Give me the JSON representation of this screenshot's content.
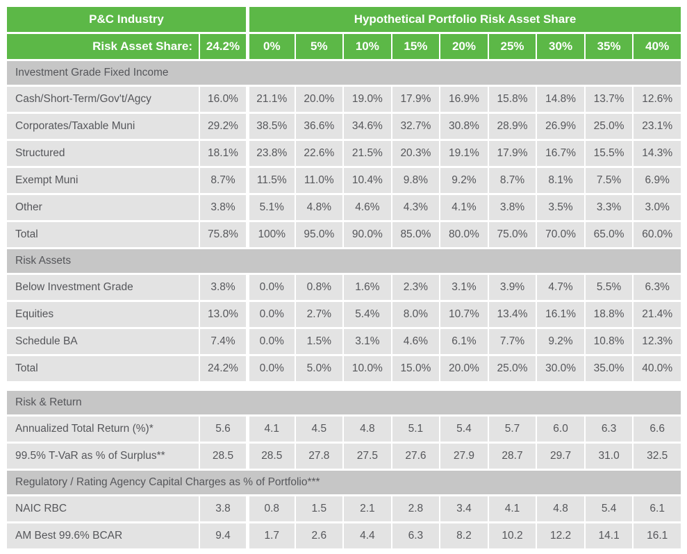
{
  "colors": {
    "green": "#5cb847",
    "header_text": "#ffffff",
    "section_bg": "#c6c6c6",
    "row_bg": "#e3e3e3",
    "text": "#55565a",
    "page_bg": "#ffffff"
  },
  "chart_data": {
    "type": "table",
    "header": {
      "left_group": "P&C Industry",
      "right_group": "Hypothetical Portfolio Risk Asset Share",
      "row_label": "Risk Asset Share:",
      "industry_value": "24.2%",
      "risk_share_columns": [
        "0%",
        "5%",
        "10%",
        "15%",
        "20%",
        "25%",
        "30%",
        "35%",
        "40%"
      ]
    },
    "sections": [
      {
        "title": "Investment Grade Fixed Income",
        "gap_after": false,
        "rows": [
          {
            "label": "Cash/Short-Term/Gov't/Agcy",
            "industry": "16.0%",
            "values": [
              "21.1%",
              "20.0%",
              "19.0%",
              "17.9%",
              "16.9%",
              "15.8%",
              "14.8%",
              "13.7%",
              "12.6%"
            ]
          },
          {
            "label": "Corporates/Taxable Muni",
            "industry": "29.2%",
            "values": [
              "38.5%",
              "36.6%",
              "34.6%",
              "32.7%",
              "30.8%",
              "28.9%",
              "26.9%",
              "25.0%",
              "23.1%"
            ]
          },
          {
            "label": "Structured",
            "industry": "18.1%",
            "values": [
              "23.8%",
              "22.6%",
              "21.5%",
              "20.3%",
              "19.1%",
              "17.9%",
              "16.7%",
              "15.5%",
              "14.3%"
            ]
          },
          {
            "label": "Exempt Muni",
            "industry": "8.7%",
            "values": [
              "11.5%",
              "11.0%",
              "10.4%",
              "9.8%",
              "9.2%",
              "8.7%",
              "8.1%",
              "7.5%",
              "6.9%"
            ]
          },
          {
            "label": "Other",
            "industry": "3.8%",
            "values": [
              "5.1%",
              "4.8%",
              "4.6%",
              "4.3%",
              "4.1%",
              "3.8%",
              "3.5%",
              "3.3%",
              "3.0%"
            ]
          },
          {
            "label": "Total",
            "industry": "75.8%",
            "values": [
              "100%",
              "95.0%",
              "90.0%",
              "85.0%",
              "80.0%",
              "75.0%",
              "70.0%",
              "65.0%",
              "60.0%"
            ]
          }
        ]
      },
      {
        "title": "Risk Assets",
        "gap_after": true,
        "rows": [
          {
            "label": "Below Investment Grade",
            "industry": "3.8%",
            "values": [
              "0.0%",
              "0.8%",
              "1.6%",
              "2.3%",
              "3.1%",
              "3.9%",
              "4.7%",
              "5.5%",
              "6.3%"
            ]
          },
          {
            "label": "Equities",
            "industry": "13.0%",
            "values": [
              "0.0%",
              "2.7%",
              "5.4%",
              "8.0%",
              "10.7%",
              "13.4%",
              "16.1%",
              "18.8%",
              "21.4%"
            ]
          },
          {
            "label": "Schedule BA",
            "industry": "7.4%",
            "values": [
              "0.0%",
              "1.5%",
              "3.1%",
              "4.6%",
              "6.1%",
              "7.7%",
              "9.2%",
              "10.8%",
              "12.3%"
            ]
          },
          {
            "label": "Total",
            "industry": "24.2%",
            "values": [
              "0.0%",
              "5.0%",
              "10.0%",
              "15.0%",
              "20.0%",
              "25.0%",
              "30.0%",
              "35.0%",
              "40.0%"
            ]
          }
        ]
      },
      {
        "title": "Risk & Return",
        "gap_after": false,
        "rows": [
          {
            "label": "Annualized Total Return (%)*",
            "industry": "5.6",
            "values": [
              "4.1",
              "4.5",
              "4.8",
              "5.1",
              "5.4",
              "5.7",
              "6.0",
              "6.3",
              "6.6"
            ]
          },
          {
            "label": "99.5% T-VaR as % of Surplus**",
            "industry": "28.5",
            "values": [
              "28.5",
              "27.8",
              "27.5",
              "27.6",
              "27.9",
              "28.7",
              "29.7",
              "31.0",
              "32.5"
            ]
          }
        ]
      },
      {
        "title": "Regulatory / Rating Agency Capital Charges as % of Portfolio***",
        "gap_after": false,
        "rows": [
          {
            "label": "NAIC RBC",
            "industry": "3.8",
            "values": [
              "0.8",
              "1.5",
              "2.1",
              "2.8",
              "3.4",
              "4.1",
              "4.8",
              "5.4",
              "6.1"
            ]
          },
          {
            "label": "AM Best 99.6% BCAR",
            "industry": "9.4",
            "values": [
              "1.7",
              "2.6",
              "4.4",
              "6.3",
              "8.2",
              "10.2",
              "12.2",
              "14.1",
              "16.1"
            ]
          }
        ]
      }
    ]
  }
}
